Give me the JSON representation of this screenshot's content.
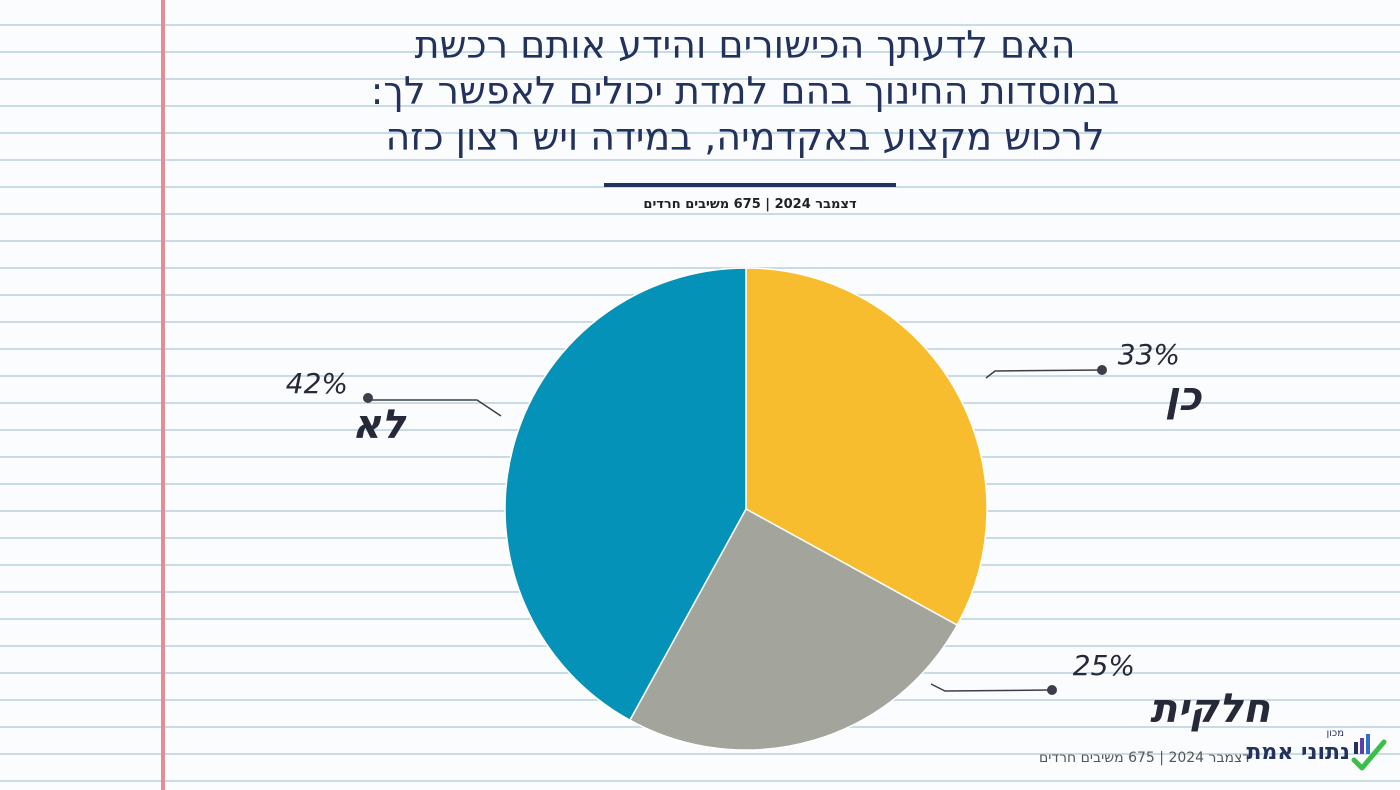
{
  "title_lines": [
    "האם לדעתך הכישורים והידע אותם רכשת",
    "במוסדות החינוך בהם למדת יכולים לאפשר לך:",
    "לרכוש מקצוע באקדמיה, במידה ויש רצון כזה"
  ],
  "subtitle": "דצמבר 2024 | 675 משיבים חרדים",
  "footer_note": "דצמבר 2024 | 675 משיבים חרדים",
  "logo": {
    "small": "מכון",
    "main": "נתוני אמת"
  },
  "colors": {
    "title": "#23325c",
    "yes": "#f7bd2f",
    "partial": "#a3a49b",
    "no": "#0592b8",
    "margin_line": "#e58c96",
    "ruled_line": "#c9dce5"
  },
  "chart_data": {
    "type": "pie",
    "title": "האם לדעתך הכישורים והידע אותם רכשת במוסדות החינוך בהם למדת יכולים לאפשר לך: לרכוש מקצוע באקדמיה, במידה ויש רצון כזה",
    "subtitle": "דצמבר 2024 | 675 משיבים חרדים",
    "slices": [
      {
        "label": "כן",
        "value": 33,
        "value_label": "33%",
        "color": "#f7bd2f"
      },
      {
        "label": "חלקית",
        "value": 25,
        "value_label": "25%",
        "color": "#a3a49b"
      },
      {
        "label": "לא",
        "value": 42,
        "value_label": "42%",
        "color": "#0592b8"
      }
    ],
    "start": "12 o'clock, clockwise",
    "legend": "none"
  }
}
